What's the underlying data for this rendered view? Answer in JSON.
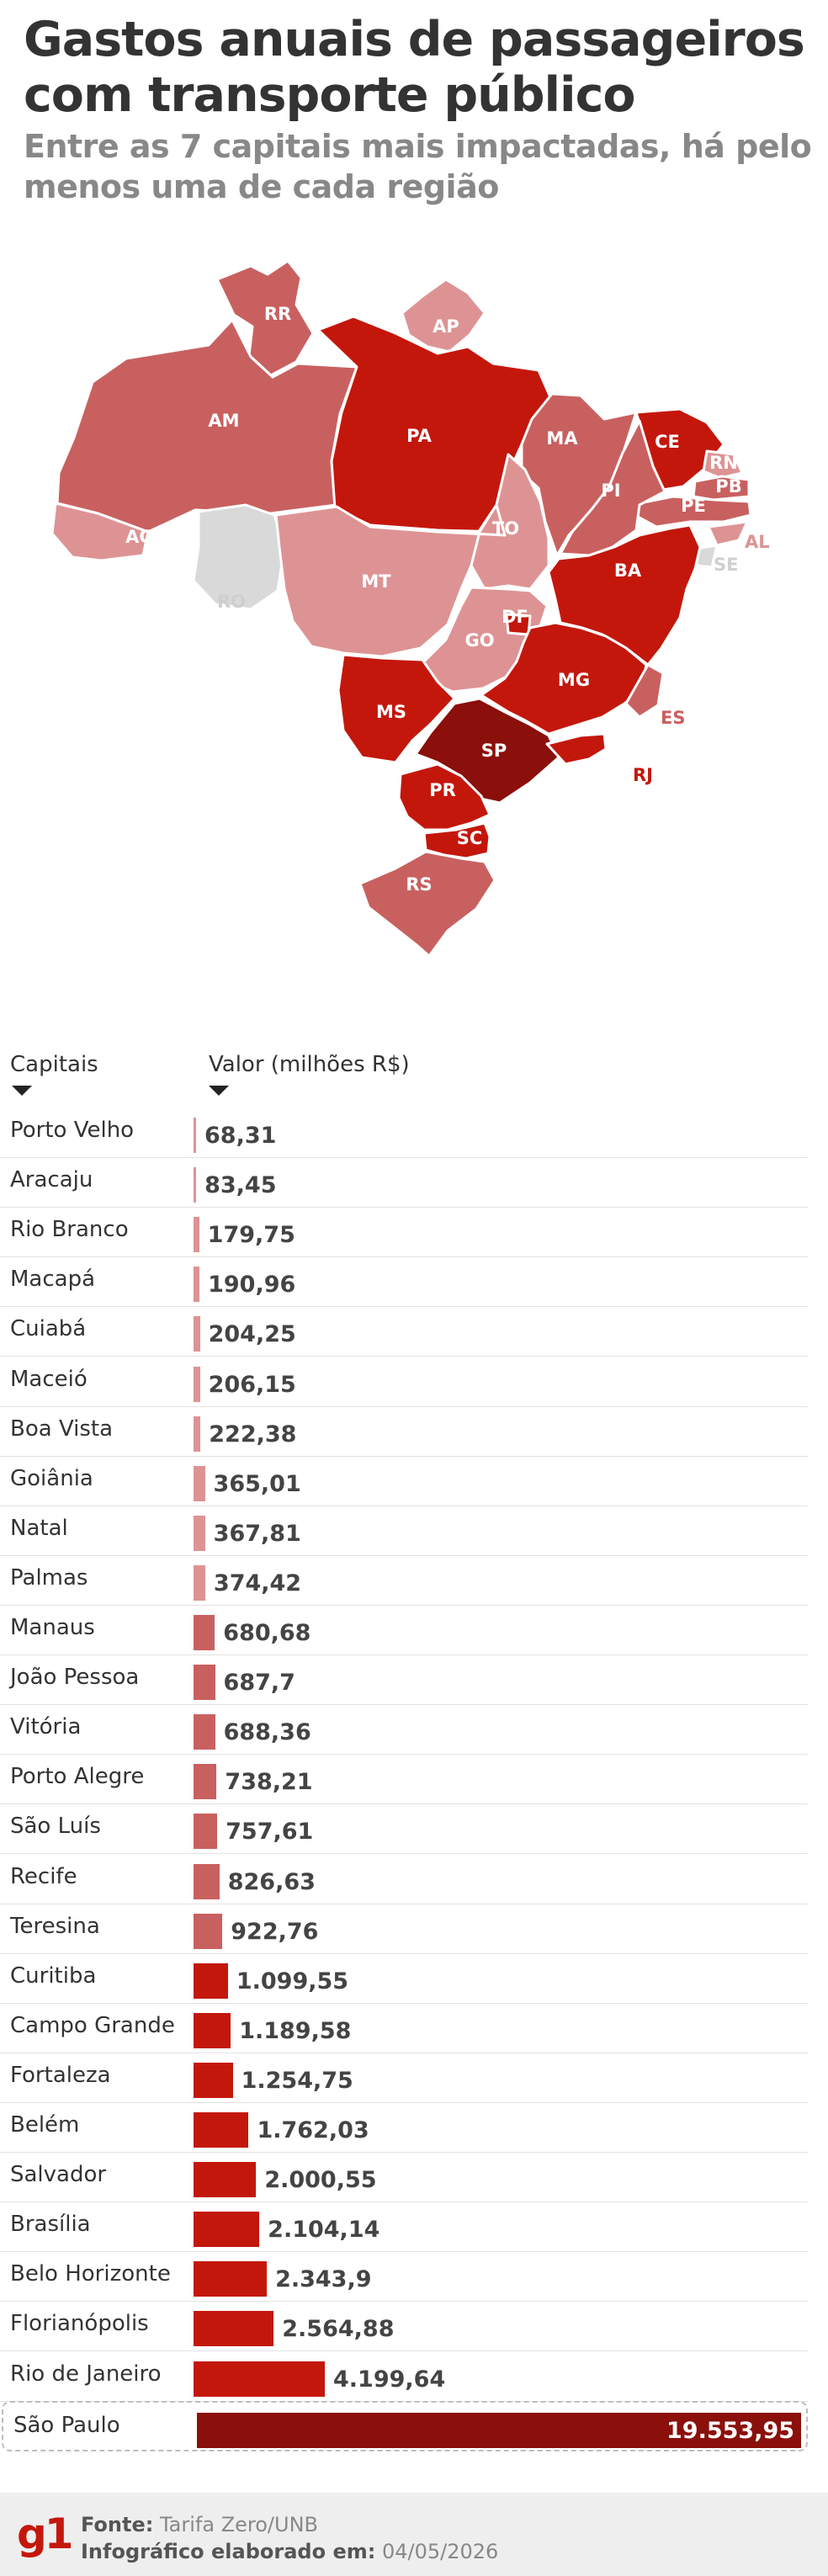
{
  "title": "Gastos anuais de passageiros com transporte público",
  "subtitle": "Entre as 7 capitais mais impactadas, há pelo menos uma de cada região",
  "colors": {
    "darkest": "#8b0f0b",
    "dark": "#c4170c",
    "medium": "#c96060",
    "light": "#dd9394",
    "none": "#d9d9d9"
  },
  "map": {
    "states": [
      {
        "uf": "RR",
        "level": "medium"
      },
      {
        "uf": "AP",
        "level": "light"
      },
      {
        "uf": "AM",
        "level": "medium"
      },
      {
        "uf": "PA",
        "level": "dark"
      },
      {
        "uf": "MA",
        "level": "medium"
      },
      {
        "uf": "CE",
        "level": "dark"
      },
      {
        "uf": "RN",
        "level": "light"
      },
      {
        "uf": "PB",
        "level": "medium"
      },
      {
        "uf": "PE",
        "level": "medium"
      },
      {
        "uf": "AL",
        "level": "light"
      },
      {
        "uf": "SE",
        "level": "none"
      },
      {
        "uf": "PI",
        "level": "medium"
      },
      {
        "uf": "AC",
        "level": "light"
      },
      {
        "uf": "RO",
        "level": "none"
      },
      {
        "uf": "TO",
        "level": "light"
      },
      {
        "uf": "BA",
        "level": "dark"
      },
      {
        "uf": "MT",
        "level": "light"
      },
      {
        "uf": "GO",
        "level": "light"
      },
      {
        "uf": "DF",
        "level": "dark"
      },
      {
        "uf": "MG",
        "level": "dark"
      },
      {
        "uf": "ES",
        "level": "medium"
      },
      {
        "uf": "MS",
        "level": "dark"
      },
      {
        "uf": "SP",
        "level": "darkest"
      },
      {
        "uf": "RJ",
        "level": "dark"
      },
      {
        "uf": "PR",
        "level": "dark"
      },
      {
        "uf": "SC",
        "level": "dark"
      },
      {
        "uf": "RS",
        "level": "medium"
      }
    ]
  },
  "table": {
    "col_city": "Capitais",
    "col_value": "Valor (milhões R$)"
  },
  "chart_data": {
    "type": "bar",
    "orientation": "horizontal",
    "xlabel": "Valor (milhões R$)",
    "categories": [
      "Porto Velho",
      "Aracaju",
      "Rio Branco",
      "Macapá",
      "Cuiabá",
      "Maceió",
      "Boa Vista",
      "Goiânia",
      "Natal",
      "Palmas",
      "Manaus",
      "João Pessoa",
      "Vitória",
      "Porto Alegre",
      "São Luís",
      "Recife",
      "Teresina",
      "Curitiba",
      "Campo Grande",
      "Fortaleza",
      "Belém",
      "Salvador",
      "Brasília",
      "Belo Horizonte",
      "Florianópolis",
      "Rio de Janeiro",
      "São Paulo"
    ],
    "values": [
      68.31,
      83.45,
      179.75,
      190.96,
      204.25,
      206.15,
      222.38,
      365.01,
      367.81,
      374.42,
      680.68,
      687.7,
      688.36,
      738.21,
      757.61,
      826.63,
      922.76,
      1099.55,
      1189.58,
      1254.75,
      1762.03,
      2000.55,
      2104.14,
      2343.9,
      2564.88,
      4199.64,
      19553.95
    ],
    "labels": [
      "68,31",
      "83,45",
      "179,75",
      "190,96",
      "204,25",
      "206,15",
      "222,38",
      "365,01",
      "367,81",
      "374,42",
      "680,68",
      "687,7",
      "688,36",
      "738,21",
      "757,61",
      "826,63",
      "922,76",
      "1.099,55",
      "1.189,58",
      "1.254,75",
      "1.762,03",
      "2.000,55",
      "2.104,14",
      "2.343,9",
      "2.564,88",
      "4.199,64",
      "19.553,95"
    ],
    "levels": [
      "light",
      "light",
      "light",
      "light",
      "light",
      "light",
      "light",
      "light",
      "light",
      "light",
      "medium",
      "medium",
      "medium",
      "medium",
      "medium",
      "medium",
      "medium",
      "dark",
      "dark",
      "dark",
      "dark",
      "dark",
      "dark",
      "dark",
      "dark",
      "dark",
      "darkest"
    ],
    "highlight": "São Paulo"
  },
  "footer": {
    "logo": "g1",
    "source_label": "Fonte:",
    "source": "Tarifa Zero/UNB",
    "date_label": "Infográfico elaborado em:",
    "date": "04/05/2026"
  }
}
